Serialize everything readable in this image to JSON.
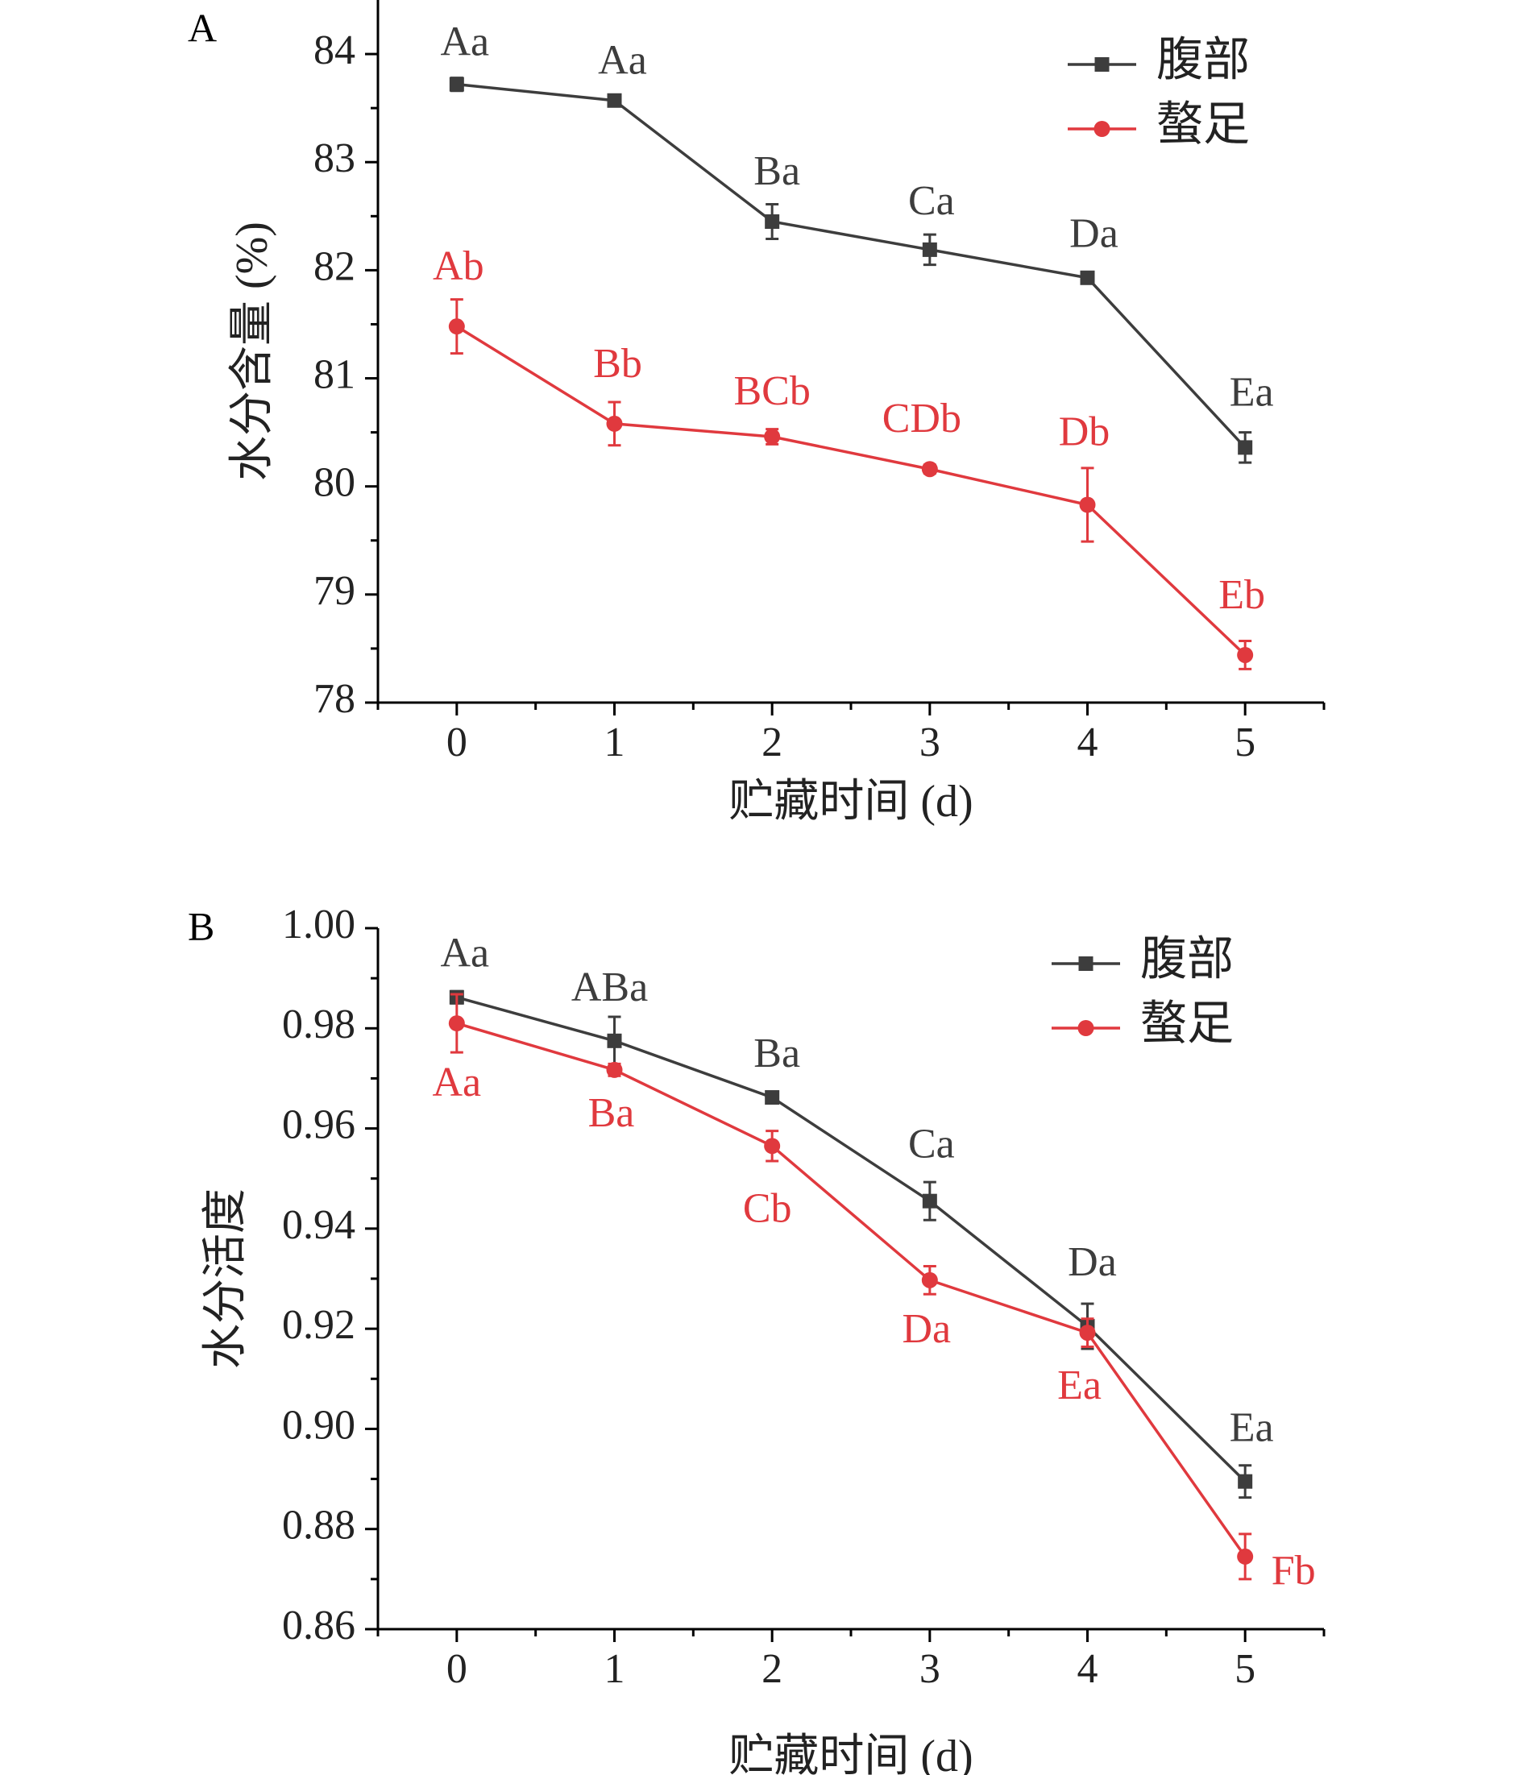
{
  "chart_data": [
    {
      "panel_label": "A",
      "type": "line",
      "xlabel": "贮藏时间 (d)",
      "ylabel": "水分含量 (%)",
      "xlim": [
        -0.5,
        5.5
      ],
      "ylim": [
        78,
        84.5
      ],
      "x": [
        0,
        1,
        2,
        3,
        4,
        5
      ],
      "xticks": [
        "0",
        "1",
        "2",
        "3",
        "4",
        "5"
      ],
      "yticks": [
        "78",
        "79",
        "80",
        "81",
        "82",
        "83",
        "84"
      ],
      "yticks_values": [
        78,
        79,
        80,
        81,
        82,
        83,
        84
      ],
      "grid": false,
      "legend_position": "top-right",
      "series": [
        {
          "name": "腹部",
          "color": "#3d3d3d",
          "marker": "square",
          "values": [
            83.72,
            83.57,
            82.45,
            82.19,
            81.93,
            80.36
          ],
          "errors": [
            0.06,
            0.03,
            0.16,
            0.14,
            0.03,
            0.14
          ],
          "letters": [
            "Aa",
            "Aa",
            "Ba",
            "Ca",
            "Da",
            "Ea"
          ]
        },
        {
          "name": "螯足",
          "color": "#e0393e",
          "marker": "circle",
          "values": [
            81.48,
            80.58,
            80.46,
            80.16,
            79.83,
            78.44
          ],
          "errors": [
            0.25,
            0.2,
            0.07,
            0.04,
            0.34,
            0.13
          ],
          "letters": [
            "Ab",
            "Bb",
            "BCb",
            "CDb",
            "Db",
            "Eb"
          ]
        }
      ]
    },
    {
      "panel_label": "B",
      "type": "line",
      "xlabel": "贮藏时间 (d)",
      "ylabel": "水分活度",
      "xlim": [
        -0.5,
        5.5
      ],
      "ylim": [
        0.86,
        1.0
      ],
      "x": [
        0,
        1,
        2,
        3,
        4,
        5
      ],
      "xticks": [
        "0",
        "1",
        "2",
        "3",
        "4",
        "5"
      ],
      "yticks": [
        "0.86",
        "0.88",
        "0.90",
        "0.92",
        "0.94",
        "0.96",
        "0.98",
        "1.00"
      ],
      "yticks_values": [
        0.86,
        0.88,
        0.9,
        0.92,
        0.94,
        0.96,
        0.98,
        1.0
      ],
      "grid": false,
      "legend_position": "top-right",
      "series": [
        {
          "name": "腹部",
          "color": "#3d3d3d",
          "marker": "square",
          "values": [
            0.9862,
            0.9775,
            0.9662,
            0.9455,
            0.9205,
            0.8895
          ],
          "errors": [
            0.0012,
            0.0048,
            0.0008,
            0.0038,
            0.0045,
            0.0032
          ],
          "letters": [
            "Aa",
            "ABa",
            "Ba",
            "Ca",
            "Da",
            "Ea"
          ]
        },
        {
          "name": "螯足",
          "color": "#e0393e",
          "marker": "circle",
          "values": [
            0.981,
            0.9717,
            0.9565,
            0.9297,
            0.9192,
            0.8745
          ],
          "errors": [
            0.0058,
            0.0012,
            0.003,
            0.0028,
            0.0028,
            0.0045
          ],
          "letters": [
            "Aa",
            "Ba",
            "Cb",
            "Da",
            "Ea",
            "Fb"
          ]
        }
      ]
    }
  ]
}
